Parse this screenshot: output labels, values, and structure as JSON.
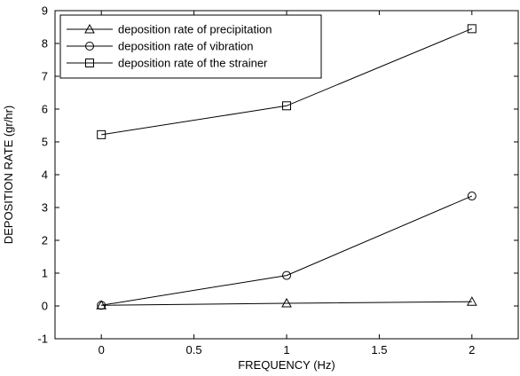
{
  "chart_data": {
    "type": "line",
    "title": "",
    "xlabel": "FREQUENCY (Hz)",
    "ylabel": "DEPOSITION RATE (gr/hr)",
    "xlim": [
      -0.25,
      2.25
    ],
    "ylim": [
      -1,
      9
    ],
    "xticks": [
      0,
      0.5,
      1,
      1.5,
      2
    ],
    "xtick_labels": [
      "0",
      "0.5",
      "1",
      "1.5",
      "2"
    ],
    "yticks": [
      -1,
      0,
      1,
      2,
      3,
      4,
      5,
      6,
      7,
      8,
      9
    ],
    "ytick_labels": [
      "-1",
      "0",
      "1",
      "2",
      "3",
      "4",
      "5",
      "6",
      "7",
      "8",
      "9"
    ],
    "grid": false,
    "legend_position": "top-left",
    "x": [
      0,
      1,
      2
    ],
    "series": [
      {
        "name": "deposition rate of precipitation",
        "marker": "triangle",
        "values": [
          0.02,
          0.08,
          0.13
        ]
      },
      {
        "name": "deposition rate of vibration",
        "marker": "circle",
        "values": [
          0.02,
          0.93,
          3.35
        ]
      },
      {
        "name": "deposition rate of the strainer",
        "marker": "square",
        "values": [
          5.22,
          6.1,
          8.45
        ]
      }
    ],
    "line_color": "#000000"
  }
}
